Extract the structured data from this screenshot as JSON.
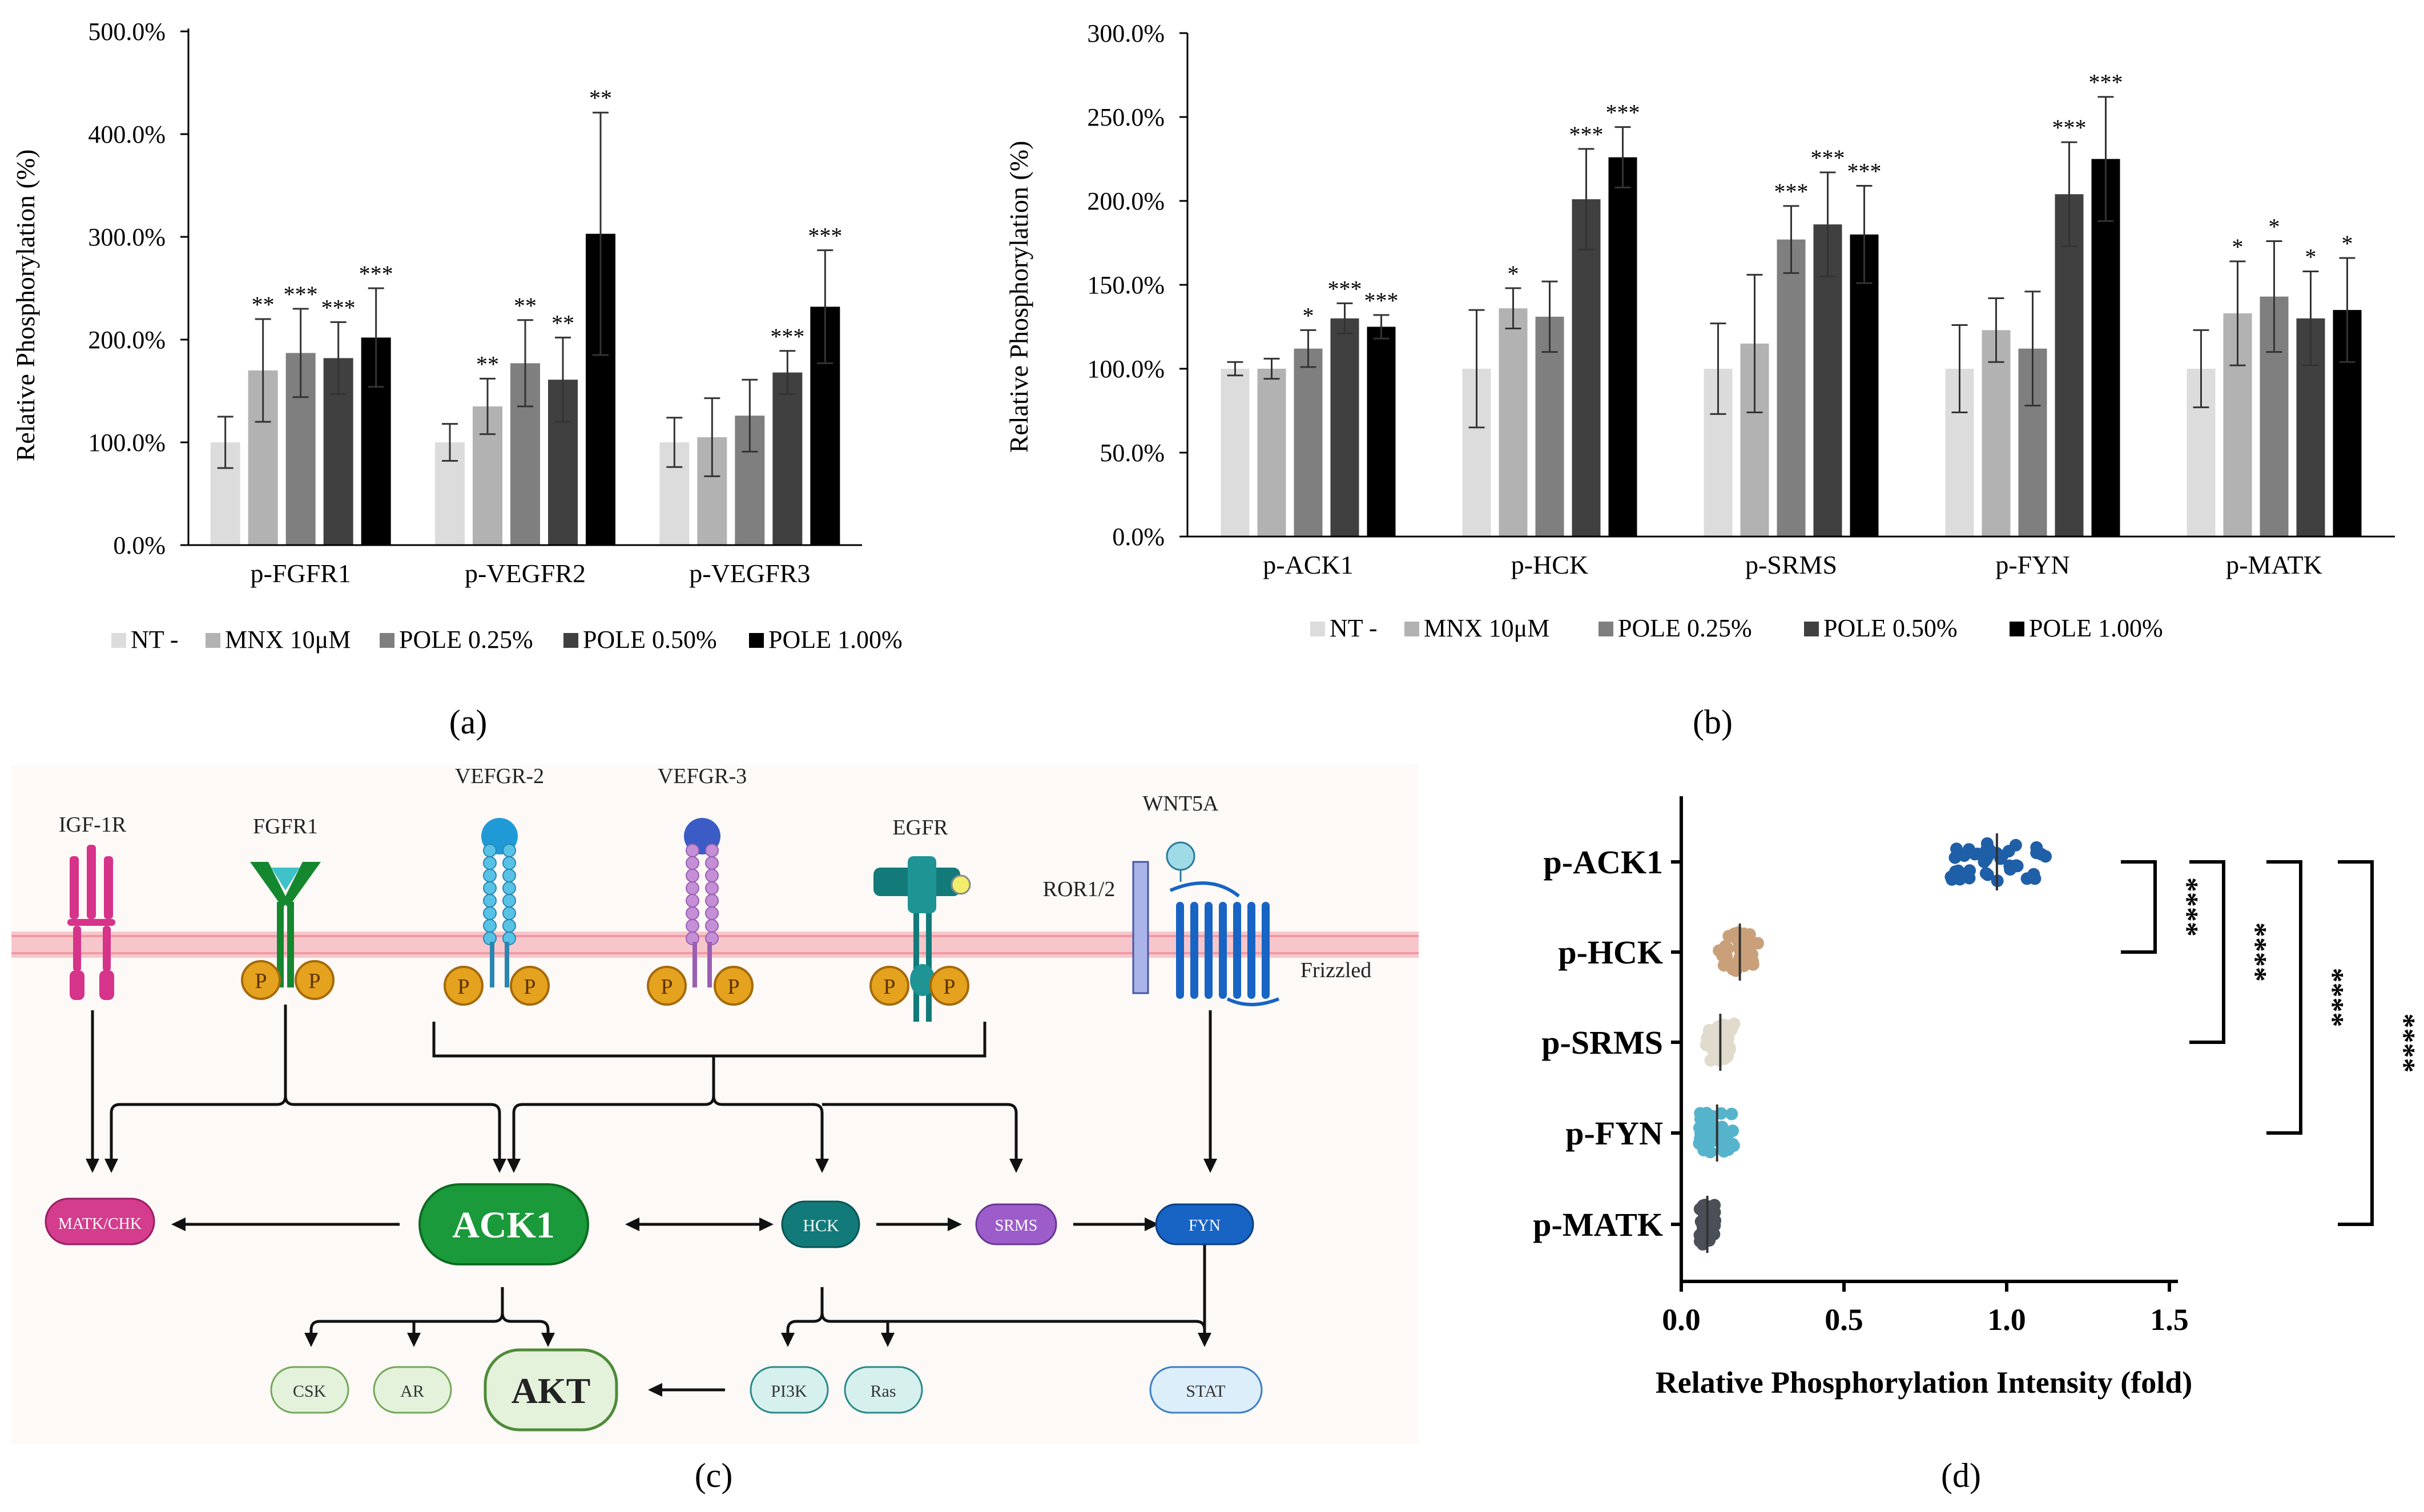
{
  "panels": {
    "a": "(a)",
    "b": "(b)",
    "c": "(c)",
    "d": "(d)"
  },
  "legend": [
    {
      "name": "NT -",
      "color": "#dcdcdc"
    },
    {
      "name": "MNX 10μM",
      "color": "#b2b2b2"
    },
    {
      "name": "POLE 0.25%",
      "color": "#7f7f7f"
    },
    {
      "name": "POLE 0.50%",
      "color": "#404040"
    },
    {
      "name": "POLE 1.00%",
      "color": "#000000"
    }
  ],
  "chart_data": [
    {
      "id": "a",
      "type": "bar",
      "ylabel": "Relative  Phosphorylation (%)",
      "ylim": [
        0,
        500
      ],
      "yticks": [
        "0.0%",
        "100.0%",
        "200.0%",
        "300.0%",
        "400.0%",
        "500.0%"
      ],
      "categories": [
        "p-FGFR1",
        "p-VEGFR2",
        "p-VEGFR3"
      ],
      "series": [
        {
          "name": "NT -",
          "values": [
            100,
            100,
            100
          ],
          "err": [
            25,
            18,
            24
          ],
          "sig": [
            "",
            "",
            ""
          ]
        },
        {
          "name": "MNX 10μM",
          "values": [
            170,
            135,
            105
          ],
          "err": [
            50,
            27,
            38
          ],
          "sig": [
            "**",
            "**",
            ""
          ]
        },
        {
          "name": "POLE 0.25%",
          "values": [
            187,
            177,
            126
          ],
          "err": [
            43,
            42,
            35
          ],
          "sig": [
            "***",
            "**",
            ""
          ]
        },
        {
          "name": "POLE 0.50%",
          "values": [
            182,
            161,
            168
          ],
          "err": [
            35,
            41,
            21
          ],
          "sig": [
            "***",
            "**",
            "***"
          ]
        },
        {
          "name": "POLE 1.00%",
          "values": [
            202,
            303,
            232
          ],
          "err": [
            48,
            118,
            55
          ],
          "sig": [
            "***",
            "**",
            "***"
          ]
        }
      ]
    },
    {
      "id": "b",
      "type": "bar",
      "ylabel": "Relative  Phosphorylation (%)",
      "ylim": [
        0,
        300
      ],
      "yticks": [
        "0.0%",
        "50.0%",
        "100.0%",
        "150.0%",
        "200.0%",
        "250.0%",
        "300.0%"
      ],
      "categories": [
        "p-ACK1",
        "p-HCK",
        "p-SRMS",
        "p-FYN",
        "p-MATK"
      ],
      "series": [
        {
          "name": "NT -",
          "values": [
            100,
            100,
            100,
            100,
            100
          ],
          "err": [
            4,
            35,
            27,
            26,
            23
          ],
          "sig": [
            "",
            "",
            "",
            "",
            ""
          ]
        },
        {
          "name": "MNX 10μM",
          "values": [
            100,
            136,
            115,
            123,
            133
          ],
          "err": [
            6,
            12,
            41,
            19,
            31
          ],
          "sig": [
            "",
            "*",
            "",
            "",
            "*"
          ]
        },
        {
          "name": "POLE 0.25%",
          "values": [
            112,
            131,
            177,
            112,
            143
          ],
          "err": [
            11,
            21,
            20,
            34,
            33
          ],
          "sig": [
            "*",
            "",
            "***",
            "",
            "*"
          ]
        },
        {
          "name": "POLE 0.50%",
          "values": [
            130,
            201,
            186,
            204,
            130
          ],
          "err": [
            9,
            30,
            31,
            31,
            28
          ],
          "sig": [
            "***",
            "***",
            "***",
            "***",
            "*"
          ]
        },
        {
          "name": "POLE 1.00%",
          "values": [
            125,
            226,
            180,
            225,
            135
          ],
          "err": [
            7,
            18,
            29,
            37,
            31
          ],
          "sig": [
            "***",
            "***",
            "***",
            "***",
            "*"
          ]
        }
      ]
    },
    {
      "id": "d",
      "type": "scatter",
      "xlabel": "Relative Phosphorylation Intensity (fold)",
      "xlim": [
        0,
        1.5
      ],
      "xticks": [
        "0.0",
        "0.5",
        "1.0",
        "1.5"
      ],
      "categories": [
        "p-ACK1",
        "p-HCK",
        "p-SRMS",
        "p-FYN",
        "p-MATK"
      ],
      "colors": [
        "#1f5fa8",
        "#c9a07a",
        "#e0dbcc",
        "#56b3cc",
        "#4a4f58"
      ],
      "centers": [
        0.97,
        0.18,
        0.12,
        0.11,
        0.08
      ],
      "spreads": [
        0.3,
        0.13,
        0.09,
        0.11,
        0.05
      ],
      "comparisons": [
        {
          "from": "p-ACK1",
          "to": "p-HCK",
          "label": "****"
        },
        {
          "from": "p-ACK1",
          "to": "p-SRMS",
          "label": "****"
        },
        {
          "from": "p-ACK1",
          "to": "p-FYN",
          "label": "****"
        },
        {
          "from": "p-ACK1",
          "to": "p-MATK",
          "label": "****"
        }
      ]
    }
  ],
  "diagram": {
    "receptors": {
      "igf1r": "IGF-1R",
      "fgfr1": "FGFR1",
      "vefgr2": "VEFGR-2",
      "vefgr3": "VEFGR-3",
      "egfr": "EGFR",
      "wnt5a": "WNT5A",
      "ror": "ROR1/2",
      "frizzled": "Frizzled"
    },
    "phospho": "P",
    "nodes": {
      "matk": "MATK/CHK",
      "ack1": "ACK1",
      "hck": "HCK",
      "srms": "SRMS",
      "fyn": "FYN",
      "csk": "CSK",
      "ar": "AR",
      "akt": "AKT",
      "pi3k": "PI3K",
      "ras": "Ras",
      "stat": "STAT"
    }
  }
}
